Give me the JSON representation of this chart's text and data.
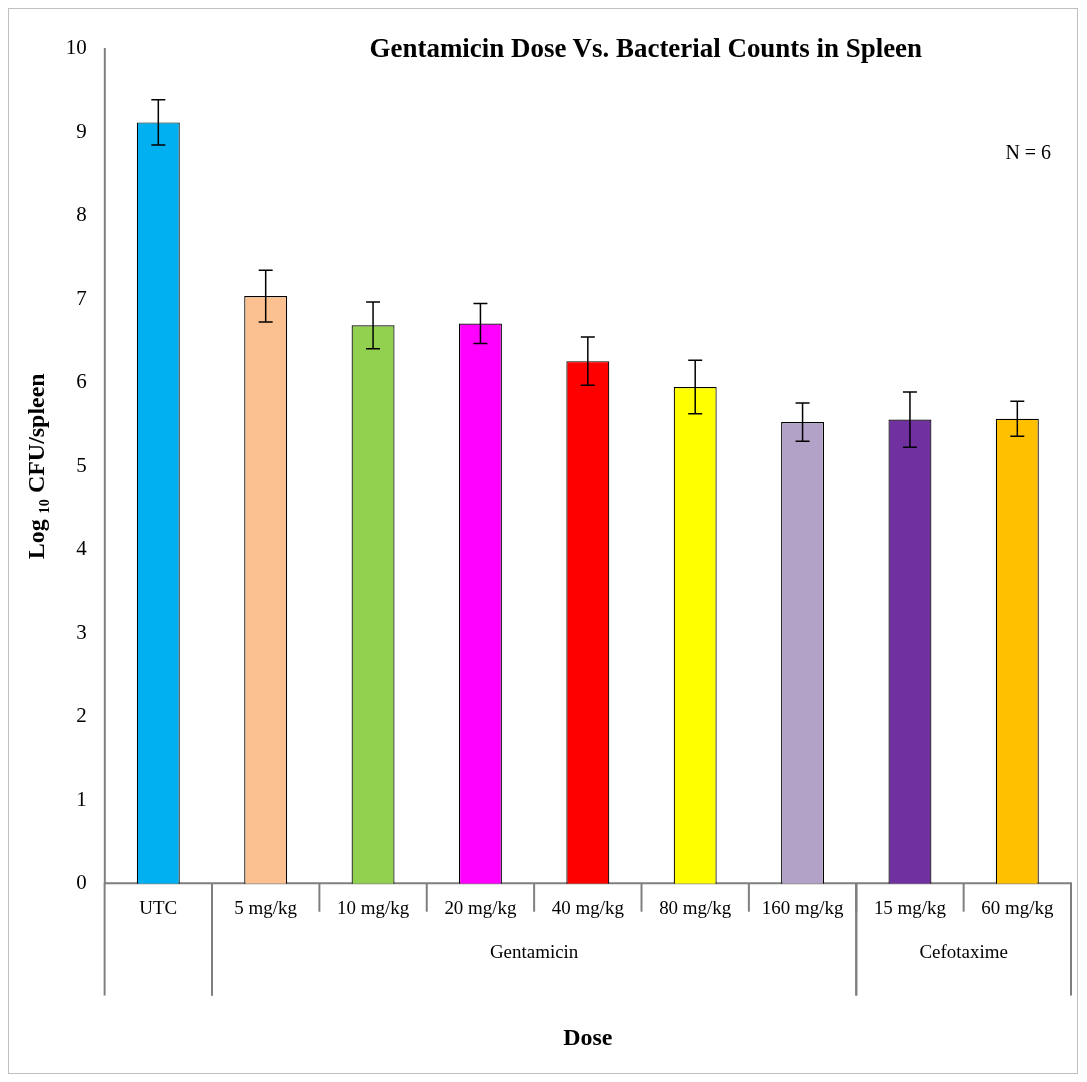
{
  "chart_data": {
    "type": "bar",
    "title": "Gentamicin Dose Vs. Bacterial Counts in Spleen",
    "xlabel": "Dose",
    "ylabel": "Log ₁₀ CFU/spleen",
    "categories": [
      "UTC",
      "5 mg/kg",
      "10 mg/kg",
      "20 mg/kg",
      "40 mg/kg",
      "80 mg/kg",
      "160 mg/kg",
      "15 mg/kg",
      "60 mg/kg"
    ],
    "values": [
      9.12,
      7.04,
      6.69,
      6.71,
      6.26,
      5.95,
      5.53,
      5.56,
      5.57
    ],
    "errors": [
      0.27,
      0.31,
      0.28,
      0.24,
      0.29,
      0.32,
      0.23,
      0.33,
      0.21
    ],
    "colors": [
      "#00b0f0",
      "#fac090",
      "#92d050",
      "#ff00ff",
      "#ff0000",
      "#ffff00",
      "#b3a2c7",
      "#7030a0",
      "#ffc000"
    ],
    "ylim": [
      0,
      10
    ],
    "yticks": [
      0,
      1,
      2,
      3,
      4,
      5,
      6,
      7,
      8,
      9,
      10
    ],
    "grid": false,
    "legend": false,
    "annotations": [
      "N = 6",
      "Gentamicin",
      "Cefotaxime"
    ]
  }
}
